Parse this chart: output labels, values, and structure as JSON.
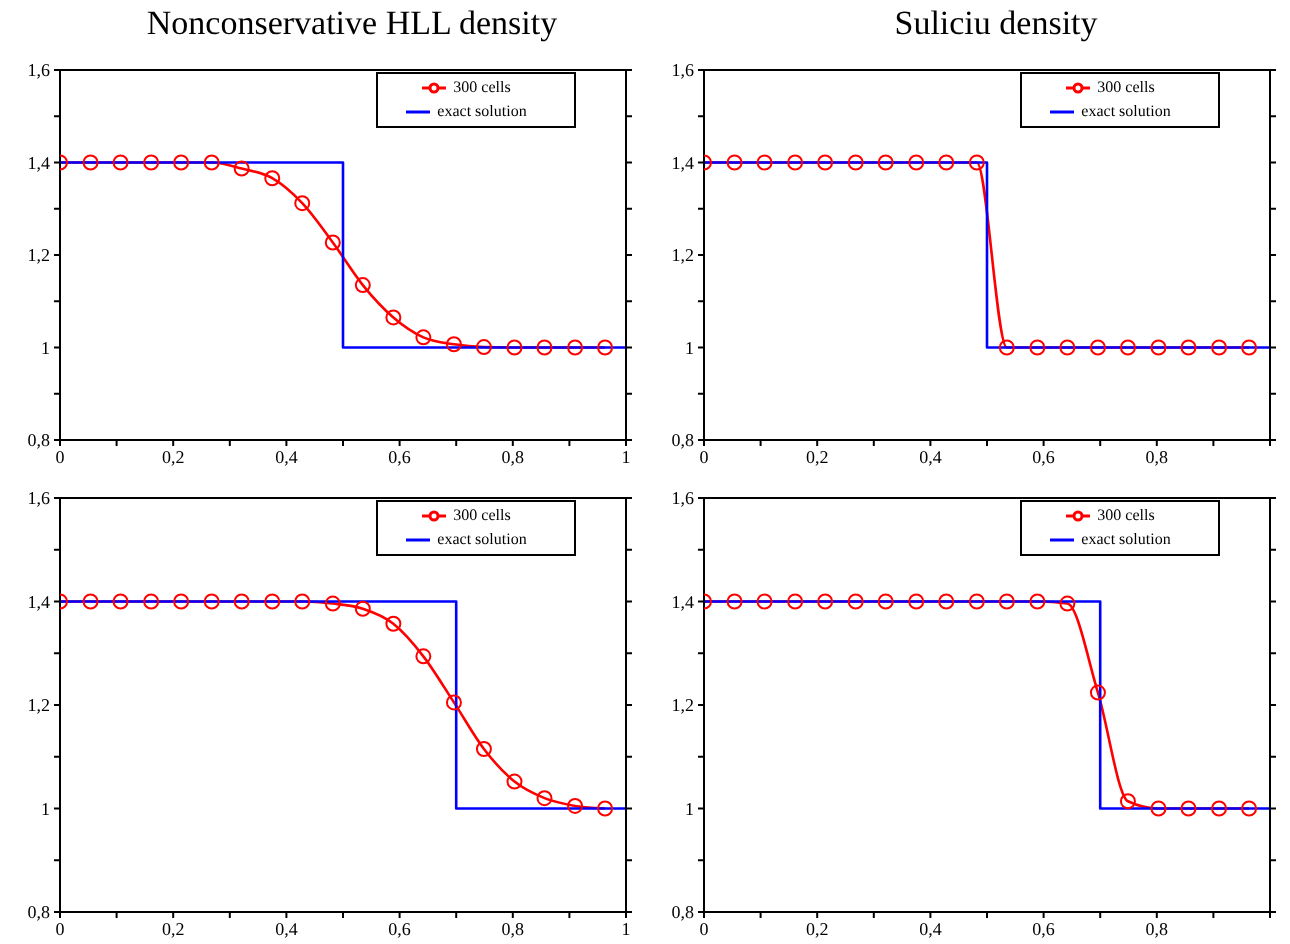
{
  "chart_data": [
    {
      "type": "line",
      "title": "Nonconservative HLL density",
      "xlim": [
        0,
        1
      ],
      "ylim": [
        0.8,
        1.6
      ],
      "legend": "top right",
      "xticks": [
        {
          "value": 0,
          "label": "0"
        },
        {
          "value": 0.1,
          "label": null
        },
        {
          "value": 0.2,
          "label": "0,2"
        },
        {
          "value": 0.3,
          "label": null
        },
        {
          "value": 0.4,
          "label": "0,4"
        },
        {
          "value": 0.5,
          "label": null
        },
        {
          "value": 0.6,
          "label": "0,6"
        },
        {
          "value": 0.7,
          "label": null
        },
        {
          "value": 0.8,
          "label": "0,8"
        },
        {
          "value": 0.9,
          "label": null
        },
        {
          "value": 1,
          "label": "1"
        }
      ],
      "yticks": [
        {
          "value": 0.8,
          "label": "0,8"
        },
        {
          "value": 0.9,
          "label": null
        },
        {
          "value": 1,
          "label": "1"
        },
        {
          "value": 1.1,
          "label": null
        },
        {
          "value": 1.2,
          "label": "1,2"
        },
        {
          "value": 1.3,
          "label": null
        },
        {
          "value": 1.4,
          "label": "1,4"
        },
        {
          "value": 1.5,
          "label": null
        },
        {
          "value": 1.6,
          "label": "1,6"
        }
      ],
      "series": [
        {
          "name": "300 cells",
          "color": "#ff0000",
          "marker": "circle",
          "x": [
            0,
            0.054,
            0.107,
            0.161,
            0.214,
            0.268,
            0.321,
            0.375,
            0.428,
            0.482,
            0.535,
            0.589,
            0.642,
            0.696,
            0.749,
            0.803,
            0.856,
            0.91,
            0.963
          ],
          "values": [
            1.4,
            1.4,
            1.4,
            1.4,
            1.4,
            1.4,
            1.387,
            1.366,
            1.312,
            1.227,
            1.135,
            1.065,
            1.022,
            1.007,
            1.001,
            1,
            1,
            1,
            1
          ]
        },
        {
          "name": "exact solution",
          "color": "#0000ff",
          "marker": "none",
          "x": [
            0,
            0.5,
            0.5,
            1
          ],
          "values": [
            1.4,
            1.4,
            1,
            1
          ]
        }
      ]
    },
    {
      "type": "line",
      "title": "Suliciu density",
      "xlim": [
        0,
        1
      ],
      "ylim": [
        0.8,
        1.6
      ],
      "legend": "top right",
      "xticks": [
        {
          "value": 0,
          "label": "0"
        },
        {
          "value": 0.1,
          "label": null
        },
        {
          "value": 0.2,
          "label": "0,2"
        },
        {
          "value": 0.3,
          "label": null
        },
        {
          "value": 0.4,
          "label": "0,4"
        },
        {
          "value": 0.5,
          "label": null
        },
        {
          "value": 0.6,
          "label": "0,6"
        },
        {
          "value": 0.7,
          "label": null
        },
        {
          "value": 0.8,
          "label": "0,8"
        },
        {
          "value": 0.9,
          "label": null
        },
        {
          "value": 1,
          "label": null
        }
      ],
      "yticks": [
        {
          "value": 0.8,
          "label": "0,8"
        },
        {
          "value": 0.9,
          "label": null
        },
        {
          "value": 1,
          "label": "1"
        },
        {
          "value": 1.1,
          "label": null
        },
        {
          "value": 1.2,
          "label": "1,2"
        },
        {
          "value": 1.3,
          "label": null
        },
        {
          "value": 1.4,
          "label": "1,4"
        },
        {
          "value": 1.5,
          "label": null
        },
        {
          "value": 1.6,
          "label": "1,6"
        }
      ],
      "series": [
        {
          "name": "300 cells",
          "color": "#ff0000",
          "marker": "circle",
          "x": [
            0,
            0.054,
            0.107,
            0.161,
            0.214,
            0.268,
            0.321,
            0.375,
            0.428,
            0.482,
            0.535,
            0.589,
            0.642,
            0.696,
            0.749,
            0.803,
            0.856,
            0.91,
            0.963
          ],
          "values": [
            1.4,
            1.4,
            1.4,
            1.4,
            1.4,
            1.4,
            1.4,
            1.4,
            1.4,
            1.4,
            1,
            1,
            1,
            1,
            1,
            1,
            1,
            1,
            1
          ]
        },
        {
          "name": "exact solution",
          "color": "#0000ff",
          "marker": "none",
          "x": [
            0,
            0.5,
            0.5,
            1
          ],
          "values": [
            1.4,
            1.4,
            1,
            1
          ]
        }
      ]
    },
    {
      "type": "line",
      "xlim": [
        0,
        1
      ],
      "ylim": [
        0.8,
        1.6
      ],
      "legend": "top right",
      "xticks": [
        {
          "value": 0,
          "label": "0"
        },
        {
          "value": 0.1,
          "label": null
        },
        {
          "value": 0.2,
          "label": "0,2"
        },
        {
          "value": 0.3,
          "label": null
        },
        {
          "value": 0.4,
          "label": "0,4"
        },
        {
          "value": 0.5,
          "label": null
        },
        {
          "value": 0.6,
          "label": "0,6"
        },
        {
          "value": 0.7,
          "label": null
        },
        {
          "value": 0.8,
          "label": "0,8"
        },
        {
          "value": 0.9,
          "label": null
        },
        {
          "value": 1,
          "label": "1"
        }
      ],
      "yticks": [
        {
          "value": 0.8,
          "label": "0,8"
        },
        {
          "value": 0.9,
          "label": null
        },
        {
          "value": 1,
          "label": "1"
        },
        {
          "value": 1.1,
          "label": null
        },
        {
          "value": 1.2,
          "label": "1,2"
        },
        {
          "value": 1.3,
          "label": null
        },
        {
          "value": 1.4,
          "label": "1,4"
        },
        {
          "value": 1.5,
          "label": null
        },
        {
          "value": 1.6,
          "label": "1,6"
        }
      ],
      "series": [
        {
          "name": "300 cells",
          "color": "#ff0000",
          "marker": "circle",
          "x": [
            0,
            0.054,
            0.107,
            0.161,
            0.214,
            0.268,
            0.321,
            0.375,
            0.428,
            0.482,
            0.535,
            0.589,
            0.642,
            0.696,
            0.749,
            0.803,
            0.856,
            0.91,
            0.963
          ],
          "values": [
            1.4,
            1.4,
            1.4,
            1.4,
            1.4,
            1.4,
            1.4,
            1.4,
            1.4,
            1.396,
            1.386,
            1.357,
            1.294,
            1.205,
            1.115,
            1.052,
            1.02,
            1.005,
            1
          ]
        },
        {
          "name": "exact solution",
          "color": "#0000ff",
          "marker": "none",
          "x": [
            0,
            0.7,
            0.7,
            1
          ],
          "values": [
            1.4,
            1.4,
            1,
            1
          ]
        }
      ]
    },
    {
      "type": "line",
      "xlim": [
        0,
        1
      ],
      "ylim": [
        0.8,
        1.6
      ],
      "legend": "top right",
      "xticks": [
        {
          "value": 0,
          "label": "0"
        },
        {
          "value": 0.1,
          "label": null
        },
        {
          "value": 0.2,
          "label": "0,2"
        },
        {
          "value": 0.3,
          "label": null
        },
        {
          "value": 0.4,
          "label": "0,4"
        },
        {
          "value": 0.5,
          "label": null
        },
        {
          "value": 0.6,
          "label": "0,6"
        },
        {
          "value": 0.7,
          "label": null
        },
        {
          "value": 0.8,
          "label": "0,8"
        },
        {
          "value": 0.9,
          "label": null
        },
        {
          "value": 1,
          "label": null
        }
      ],
      "yticks": [
        {
          "value": 0.8,
          "label": "0,8"
        },
        {
          "value": 0.9,
          "label": null
        },
        {
          "value": 1,
          "label": "1"
        },
        {
          "value": 1.1,
          "label": null
        },
        {
          "value": 1.2,
          "label": "1,2"
        },
        {
          "value": 1.3,
          "label": null
        },
        {
          "value": 1.4,
          "label": "1,4"
        },
        {
          "value": 1.5,
          "label": null
        },
        {
          "value": 1.6,
          "label": "1,6"
        }
      ],
      "series": [
        {
          "name": "300 cells",
          "color": "#ff0000",
          "marker": "circle",
          "x": [
            0,
            0.054,
            0.107,
            0.161,
            0.214,
            0.268,
            0.321,
            0.375,
            0.428,
            0.482,
            0.535,
            0.589,
            0.642,
            0.696,
            0.749,
            0.803,
            0.856,
            0.91,
            0.963
          ],
          "values": [
            1.4,
            1.4,
            1.4,
            1.4,
            1.4,
            1.4,
            1.4,
            1.4,
            1.4,
            1.4,
            1.4,
            1.4,
            1.396,
            1.224,
            1.014,
            1,
            1,
            1,
            1
          ]
        },
        {
          "name": "exact solution",
          "color": "#0000ff",
          "marker": "none",
          "x": [
            0,
            0.7,
            0.7,
            1
          ],
          "values": [
            1.4,
            1.4,
            1,
            1
          ]
        }
      ]
    }
  ]
}
